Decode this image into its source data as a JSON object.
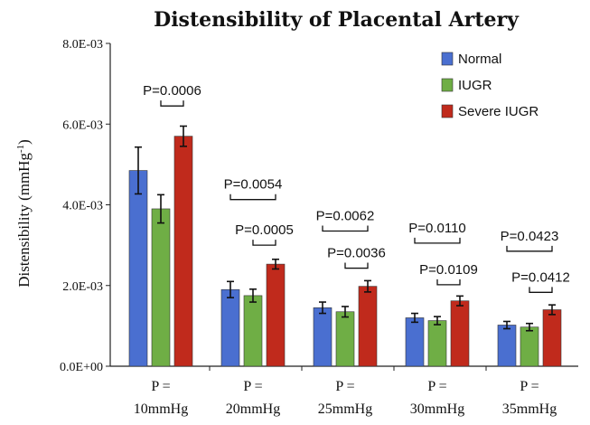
{
  "chart_data": {
    "type": "bar",
    "title": "Distensibility of Placental Artery",
    "ylabel": "Distensibility  (mmHg",
    "ylabel_sup": "-1",
    "ylabel_close": ")",
    "ylim": [
      0,
      0.008
    ],
    "yticks": [
      {
        "value": 0,
        "label": "0.0E+00"
      },
      {
        "value": 0.002,
        "label": "2.0E-03"
      },
      {
        "value": 0.004,
        "label": "4.0E-03"
      },
      {
        "value": 0.006,
        "label": "6.0E-03"
      },
      {
        "value": 0.008,
        "label": "8.0E-03"
      }
    ],
    "categories": [
      {
        "line1": "P =",
        "line2": "10mmHg"
      },
      {
        "line1": "P =",
        "line2": "20mmHg"
      },
      {
        "line1": "P =",
        "line2": "25mmHg"
      },
      {
        "line1": "P =",
        "line2": "30mmHg"
      },
      {
        "line1": "P =",
        "line2": "35mmHg"
      }
    ],
    "series": [
      {
        "name": "Normal",
        "color": "#4a6fd0",
        "values": [
          0.00485,
          0.0019,
          0.00145,
          0.0012,
          0.00102
        ],
        "errors": [
          0.00058,
          0.0002,
          0.00014,
          0.00011,
          9e-05
        ]
      },
      {
        "name": "IUGR",
        "color": "#6fae45",
        "values": [
          0.0039,
          0.00175,
          0.00135,
          0.00113,
          0.00097
        ],
        "errors": [
          0.00035,
          0.00016,
          0.00013,
          0.0001,
          9e-05
        ]
      },
      {
        "name": "Severe IUGR",
        "color": "#c02a1c",
        "values": [
          0.0057,
          0.00253,
          0.00198,
          0.00162,
          0.0014
        ],
        "errors": [
          0.00025,
          0.00012,
          0.00014,
          0.00012,
          0.00012
        ]
      }
    ],
    "annotations": [
      {
        "group": 0,
        "from": 1,
        "to": 2,
        "level": 0.00645,
        "text": "P=0.0006"
      },
      {
        "group": 1,
        "from": 0,
        "to": 2,
        "level": 0.00413,
        "text": "P=0.0054"
      },
      {
        "group": 1,
        "from": 1,
        "to": 2,
        "level": 0.003,
        "text": "P=0.0005"
      },
      {
        "group": 2,
        "from": 0,
        "to": 2,
        "level": 0.00335,
        "text": "P=0.0062"
      },
      {
        "group": 2,
        "from": 1,
        "to": 2,
        "level": 0.00243,
        "text": "P=0.0036"
      },
      {
        "group": 3,
        "from": 0,
        "to": 2,
        "level": 0.00305,
        "text": "P=0.0110"
      },
      {
        "group": 3,
        "from": 1,
        "to": 2,
        "level": 0.00202,
        "text": "P=0.0109"
      },
      {
        "group": 4,
        "from": 0,
        "to": 2,
        "level": 0.00285,
        "text": "P=0.0423"
      },
      {
        "group": 4,
        "from": 1,
        "to": 2,
        "level": 0.00183,
        "text": "P=0.0412"
      }
    ],
    "legend_position": "top-right",
    "grid": false
  }
}
